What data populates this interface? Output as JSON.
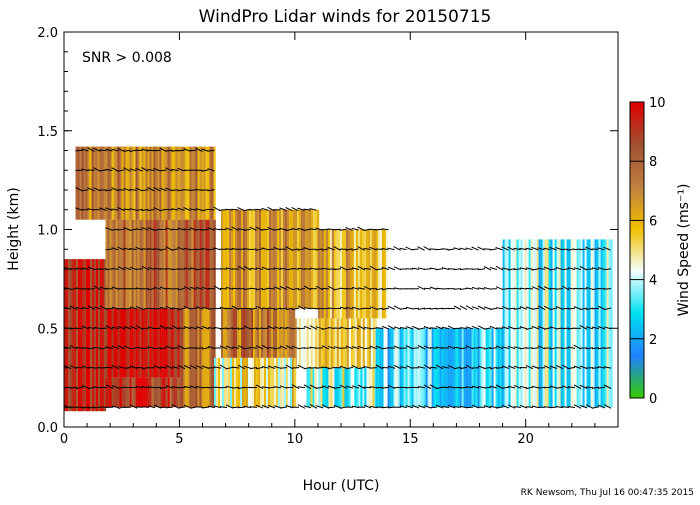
{
  "chart_data": {
    "type": "heatmap",
    "title": "WindPro Lidar winds for 20150715",
    "annotation": "SNR > 0.008",
    "xlabel": "Hour (UTC)",
    "ylabel": "Height (km)",
    "xlim": [
      0,
      24
    ],
    "ylim": [
      0,
      2.0
    ],
    "x_ticks": [
      0,
      5,
      10,
      15,
      20
    ],
    "x_tick_labels": [
      "0",
      "5",
      "10",
      "15",
      "20"
    ],
    "y_ticks": [
      0.0,
      0.5,
      1.0,
      1.5,
      2.0
    ],
    "y_tick_labels": [
      "0.0",
      "0.5",
      "1.0",
      "1.5",
      "2.0"
    ],
    "colorbar": {
      "label": "Wind Speed (ms⁻¹)",
      "range": [
        0,
        10
      ],
      "ticks": [
        0,
        2,
        4,
        6,
        8,
        10
      ],
      "tick_labels": [
        "0",
        "2",
        "4",
        "6",
        "8",
        "10"
      ],
      "colors": [
        "#33cc00",
        "#2080ff",
        "#00e0f0",
        "#f5ffff",
        "#f0c000",
        "#c08040",
        "#a05030",
        "#e00000"
      ]
    },
    "vector_heights_km": [
      0.1,
      0.2,
      0.3,
      0.4,
      0.5,
      0.6,
      0.7,
      0.8,
      0.9,
      1.0,
      1.1,
      1.2,
      1.3,
      1.4
    ],
    "regions": [
      {
        "x0": 0.0,
        "x1": 1.8,
        "y0": 0.08,
        "y1": 0.85,
        "speed": 9.5
      },
      {
        "x0": 1.8,
        "x1": 5.0,
        "y0": 0.25,
        "y1": 0.6,
        "speed": 10
      },
      {
        "x0": 1.8,
        "x1": 5.5,
        "y0": 0.1,
        "y1": 0.25,
        "speed": 9
      },
      {
        "x0": 5.0,
        "x1": 6.5,
        "y0": 0.1,
        "y1": 0.6,
        "speed": 7.5
      },
      {
        "x0": 1.8,
        "x1": 6.5,
        "y0": 0.6,
        "y1": 1.05,
        "speed": 8
      },
      {
        "x0": 0.5,
        "x1": 6.5,
        "y0": 1.05,
        "y1": 1.42,
        "speed": 7
      },
      {
        "x0": 6.8,
        "x1": 11.0,
        "y0": 0.6,
        "y1": 1.1,
        "speed": 6.5
      },
      {
        "x0": 11.0,
        "x1": 14.0,
        "y0": 0.55,
        "y1": 1.0,
        "speed": 6
      },
      {
        "x0": 6.8,
        "x1": 10.0,
        "y0": 0.35,
        "y1": 0.6,
        "speed": 7.5
      },
      {
        "x0": 10.0,
        "x1": 13.5,
        "y0": 0.3,
        "y1": 0.55,
        "speed": 5.5
      },
      {
        "x0": 6.5,
        "x1": 10.0,
        "y0": 0.1,
        "y1": 0.35,
        "speed": 5
      },
      {
        "x0": 10.5,
        "x1": 15.0,
        "y0": 0.1,
        "y1": 0.3,
        "speed": 4
      },
      {
        "x0": 13.5,
        "x1": 19.0,
        "y0": 0.1,
        "y1": 0.5,
        "speed": 3
      },
      {
        "x0": 19.0,
        "x1": 23.7,
        "y0": 0.1,
        "y1": 0.95,
        "speed": 3.5
      }
    ],
    "footer": "RK Newsom, Thu Jul 16 00:47:35 2015"
  }
}
